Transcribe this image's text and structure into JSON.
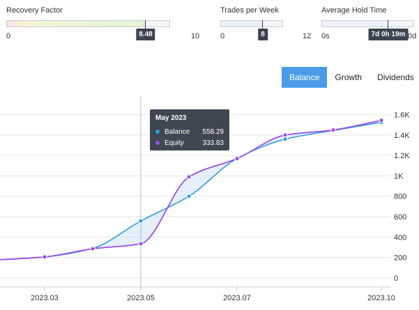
{
  "gauges": [
    {
      "title": "Recovery Factor",
      "min_label": "0",
      "max_label": "10",
      "value_label": "8.48",
      "value_fraction": 0.848
    },
    {
      "title": "Trades per Week",
      "min_label": "0",
      "max_label": "12",
      "value_label": "8",
      "value_fraction": 0.667
    },
    {
      "title": "Average Hold Time",
      "min_label": "0s",
      "max_label": "0d",
      "value_label": "7d 0h 19m",
      "value_fraction": 0.72
    }
  ],
  "tabs": [
    {
      "label": "Balance",
      "active": true
    },
    {
      "label": "Growth",
      "active": false
    },
    {
      "label": "Dividends",
      "active": false
    }
  ],
  "colors": {
    "balance": "#2f9be0",
    "equity": "#9a4ee8",
    "tab_active": "#4a9ce8",
    "tooltip_bg": "#3f4752"
  },
  "tooltip": {
    "title": "May 2023",
    "rows": [
      {
        "label": "Balance",
        "value": "558.29",
        "color": "#2f9be0"
      },
      {
        "label": "Equity",
        "value": "333.83",
        "color": "#9a4ee8"
      }
    ]
  },
  "chart_data": {
    "type": "line",
    "x_ticks": [
      "2023.03",
      "2023.05",
      "2023.07",
      "2023.10"
    ],
    "y_ticks": [
      "0",
      "200",
      "400",
      "600",
      "800",
      "1K",
      "1.2K",
      "1.4K",
      "1.6K"
    ],
    "ylim": [
      -90,
      1700
    ],
    "grid": true,
    "x": [
      "2023-01",
      "2023-03",
      "2023-04",
      "2023-05",
      "2023-06",
      "2023-07",
      "2023-08",
      "2023-09",
      "2023-10"
    ],
    "series": [
      {
        "name": "Balance",
        "values": [
          155,
          205,
          290,
          558,
          800,
          1170,
          1360,
          1445,
          1525
        ]
      },
      {
        "name": "Equity",
        "values": [
          155,
          205,
          285,
          334,
          990,
          1170,
          1400,
          1450,
          1545
        ]
      }
    ],
    "crosshair_x": "2023-05"
  }
}
